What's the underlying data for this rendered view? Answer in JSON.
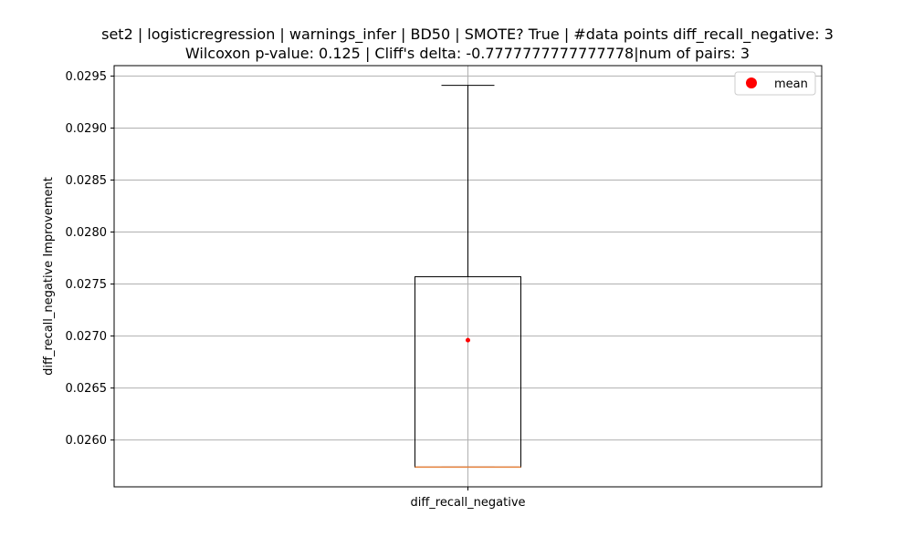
{
  "chart_data": {
    "type": "box",
    "title_line1": "set2 | logisticregression | warnings_infer | BD50 | SMOTE? True | #data points diff_recall_negative: 3",
    "title_line2": "Wilcoxon p-value: 0.125 | Cliff's delta: -0.7777777777777778|num of pairs: 3",
    "ylabel": "diff_recall_negative Improvement",
    "xlabel": "",
    "categories": [
      "diff_recall_negative"
    ],
    "ylim": [
      0.02555,
      0.0296
    ],
    "yticks": [
      0.026,
      0.0265,
      0.027,
      0.0275,
      0.028,
      0.0285,
      0.029,
      0.0295
    ],
    "ytick_labels": [
      "0.0260",
      "0.0265",
      "0.0270",
      "0.0275",
      "0.0280",
      "0.0285",
      "0.0290",
      "0.0295"
    ],
    "grid": true,
    "box": {
      "min": 0.02574,
      "q1": 0.02574,
      "median": 0.02574,
      "q3": 0.02757,
      "max": 0.02941,
      "mean": 0.02696
    },
    "legend": {
      "position": "top-right",
      "entries": [
        {
          "label": "mean",
          "marker": "circle",
          "color": "#ff0000"
        }
      ]
    },
    "colors": {
      "box": "#000000",
      "median": "#e8853f",
      "mean": "#ff0000",
      "grid": "#b0b0b0"
    }
  }
}
